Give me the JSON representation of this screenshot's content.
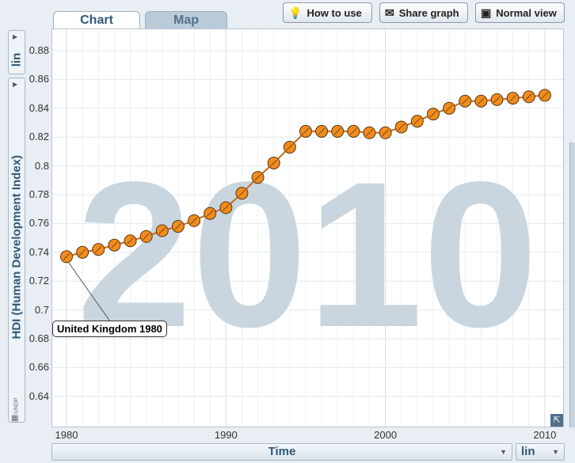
{
  "tabs": [
    {
      "label": "Chart"
    },
    {
      "label": "Map"
    }
  ],
  "toolbar": {
    "how_to_use": "How to use",
    "share_graph": "Share graph",
    "normal_view": "Normal view"
  },
  "left_scale": "lin",
  "bottom_scale": "lin",
  "small_unit_label": "UNDP",
  "year_watermark": "2010",
  "tooltip": "United Kingdom 1980",
  "chart_data": {
    "type": "line",
    "xlabel": "Time",
    "ylabel": "HDI (Human Development Index)",
    "xlim": [
      1979,
      2011
    ],
    "ylim": [
      0.62,
      0.89
    ],
    "x_ticks": [
      "1980",
      "1990",
      "2000",
      "2010"
    ],
    "y_ticks": [
      "0.64",
      "0.66",
      "0.68",
      "0.7",
      "0.72",
      "0.74",
      "0.76",
      "0.78",
      "0.8",
      "0.82",
      "0.84",
      "0.86",
      "0.88"
    ],
    "grid": true,
    "series": [
      {
        "color": "#f08c1e",
        "x": [
          1980,
          1981,
          1982,
          1983,
          1984,
          1985,
          1986,
          1987,
          1988,
          1989,
          1990,
          1991,
          1992,
          1993,
          1994,
          1995,
          1996,
          1997,
          1998,
          1999,
          2000,
          2001,
          2002,
          2003,
          2004,
          2005,
          2006,
          2007,
          2008,
          2009,
          2010
        ],
        "y": [
          0.737,
          0.74,
          0.742,
          0.745,
          0.748,
          0.751,
          0.755,
          0.758,
          0.762,
          0.767,
          0.771,
          0.781,
          0.792,
          0.802,
          0.813,
          0.824,
          0.824,
          0.824,
          0.824,
          0.823,
          0.823,
          0.827,
          0.831,
          0.836,
          0.84,
          0.845,
          0.845,
          0.846,
          0.847,
          0.848,
          0.849
        ]
      }
    ]
  }
}
